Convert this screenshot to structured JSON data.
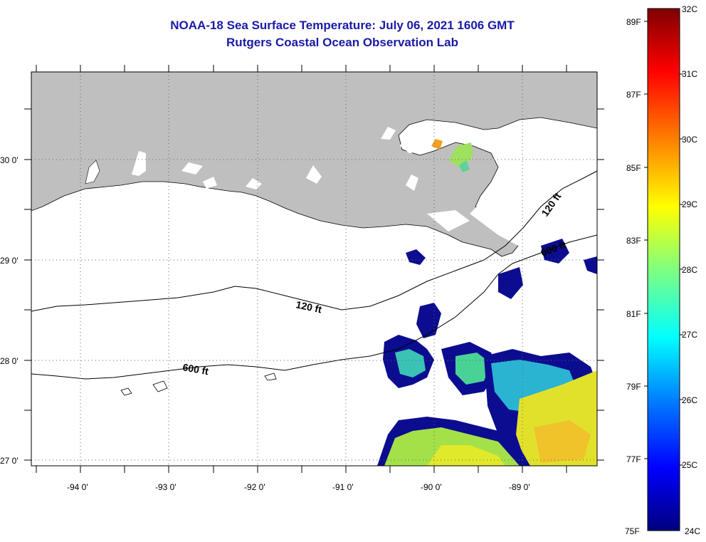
{
  "title": "NOAA-18 Sea Surface Temperature:  July 06, 2021 1606 GMT",
  "subtitle": "Rutgers Coastal Ocean Observation Lab",
  "lat_labels": [
    "30 0'",
    "29 0'",
    "28 0'",
    "27 0'"
  ],
  "lon_labels": [
    "-94 0'",
    "-93 0'",
    "-92 0'",
    "-91 0'",
    "-90 0'",
    "-89 0'"
  ],
  "contour_labels": [
    "120 ft",
    "600 ft",
    "120 ft",
    "600 ft"
  ],
  "colorbar": {
    "fahrenheit": [
      "89F",
      "87F",
      "85F",
      "83F",
      "81F",
      "79F",
      "77F",
      "75F"
    ],
    "celsius": [
      "32C",
      "31C",
      "30C",
      "29C",
      "28C",
      "27C",
      "26C",
      "25C",
      "24C"
    ],
    "colors": [
      "#7f0000",
      "#ff0000",
      "#ff7f00",
      "#ffff00",
      "#7fff7f",
      "#00ffff",
      "#007fff",
      "#0000ff",
      "#00007f"
    ]
  },
  "colors": {
    "land": "#bfbfbf",
    "title": "#1a1aa6"
  }
}
